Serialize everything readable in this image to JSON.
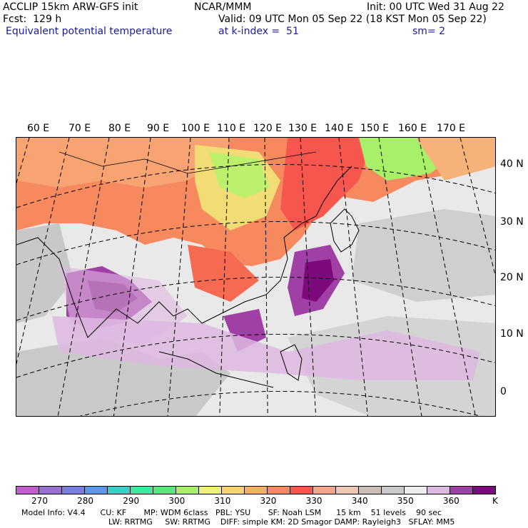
{
  "header": {
    "line1_left": "ACCLIP 15km ARW-GFS init",
    "line1_center": "NCAR/MMM",
    "line1_right": "Init: 00 UTC Wed 31 Aug 22",
    "line2_left": "Fcst:  129 h",
    "line2_right": "Valid: 09 UTC Mon 05 Sep 22 (18 KST Mon 05 Sep 22)",
    "line3_field": "Equivalent potential temperature",
    "line3_level": "at k-index =  51",
    "line3_smooth": "sm= 2"
  },
  "map": {
    "lon_labels": [
      "60 E",
      "70 E",
      "80 E",
      "90 E",
      "100 E",
      "110 E",
      "120 E",
      "130 E",
      "140 E",
      "150 E",
      "160 E",
      "170 E"
    ],
    "lat_labels": [
      "40 N",
      "30 N",
      "20 N",
      "10 N",
      "0"
    ]
  },
  "colorbar": {
    "colors": [
      "#c35cd1",
      "#9870d2",
      "#7a7ee0",
      "#5a99ea",
      "#3ad0c8",
      "#43e6a1",
      "#55e87a",
      "#a9f06a",
      "#eef17a",
      "#f7d470",
      "#f6b062",
      "#f78a5c",
      "#f7564e",
      "#f4a58a",
      "#eec8b4",
      "#cbbfb8",
      "#c9c9c9",
      "#efefef",
      "#ddb8e0",
      "#a040a6",
      "#7c0a7c"
    ],
    "tick_labels": [
      "270",
      "280",
      "290",
      "300",
      "310",
      "320",
      "330",
      "340",
      "350",
      "360"
    ],
    "unit": "K"
  },
  "footer": {
    "line1": "Model Info: V4.4      CU: KF       MP: WDM 6class   PBL: YSU       SF: Noah LSM      15 km    51 levels    90 sec",
    "line2": "LW: RRTMG     SW: RRTMG    DIFF: simple KM: 2D Smagor DAMP: Rayleigh3   SFLAY: MM5"
  }
}
